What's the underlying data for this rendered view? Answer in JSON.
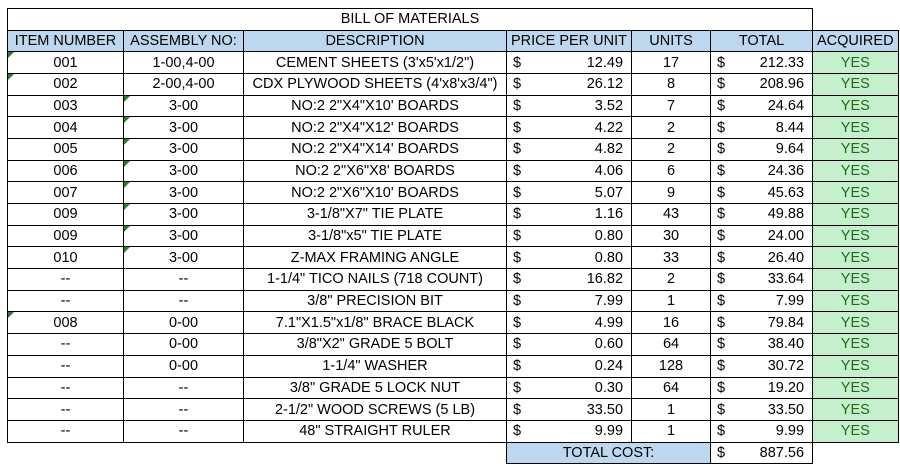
{
  "title": "BILL OF MATERIALS",
  "headers": [
    "ITEM NUMBER",
    "ASSEMBLY NO:",
    "DESCRIPTION",
    "PRICE PER UNIT",
    "UNITS",
    "TOTAL",
    "ACQUIRED"
  ],
  "currency_symbol": "$",
  "rows": [
    {
      "item": "001",
      "assembly": "1-00,4-00",
      "description": "CEMENT SHEETS (3'x5'x1/2\")",
      "price": "12.49",
      "units": "17",
      "total": "212.33",
      "acquired": "YES"
    },
    {
      "item": "002",
      "assembly": "2-00,4-00",
      "description": "CDX PLYWOOD SHEETS (4'x8'x3/4\")",
      "price": "26.12",
      "units": "8",
      "total": "208.96",
      "acquired": "YES"
    },
    {
      "item": "003",
      "assembly": "3-00",
      "description": "NO:2 2\"X4\"X10' BOARDS",
      "price": "3.52",
      "units": "7",
      "total": "24.64",
      "acquired": "YES"
    },
    {
      "item": "004",
      "assembly": "3-00",
      "description": "NO:2 2\"X4\"X12' BOARDS",
      "price": "4.22",
      "units": "2",
      "total": "8.44",
      "acquired": "YES"
    },
    {
      "item": "005",
      "assembly": "3-00",
      "description": "NO:2 2\"X4\"X14' BOARDS",
      "price": "4.82",
      "units": "2",
      "total": "9.64",
      "acquired": "YES"
    },
    {
      "item": "006",
      "assembly": "3-00",
      "description": "NO:2 2\"X6\"X8' BOARDS",
      "price": "4.06",
      "units": "6",
      "total": "24.36",
      "acquired": "YES"
    },
    {
      "item": "007",
      "assembly": "3-00",
      "description": "NO:2 2\"X6\"X10' BOARDS",
      "price": "5.07",
      "units": "9",
      "total": "45.63",
      "acquired": "YES"
    },
    {
      "item": "009",
      "assembly": "3-00",
      "description": "3-1/8\"X7\" TIE PLATE",
      "price": "1.16",
      "units": "43",
      "total": "49.88",
      "acquired": "YES"
    },
    {
      "item": "009",
      "assembly": "3-00",
      "description": "3-1/8\"x5\" TIE PLATE",
      "price": "0.80",
      "units": "30",
      "total": "24.00",
      "acquired": "YES"
    },
    {
      "item": "010",
      "assembly": "3-00",
      "description": "Z-MAX FRAMING ANGLE",
      "price": "0.80",
      "units": "33",
      "total": "26.40",
      "acquired": "YES"
    },
    {
      "item": "--",
      "assembly": "--",
      "description": "1-1/4\" TICO NAILS (718 COUNT)",
      "price": "16.82",
      "units": "2",
      "total": "33.64",
      "acquired": "YES"
    },
    {
      "item": "--",
      "assembly": "--",
      "description": "3/8\" PRECISION BIT",
      "price": "7.99",
      "units": "1",
      "total": "7.99",
      "acquired": "YES"
    },
    {
      "item": "008",
      "assembly": "0-00",
      "description": "7.1\"X1.5\"x1/8\" BRACE BLACK",
      "price": "4.99",
      "units": "16",
      "total": "79.84",
      "acquired": "YES"
    },
    {
      "item": "--",
      "assembly": "0-00",
      "description": "3/8\"X2\" GRADE 5 BOLT",
      "price": "0.60",
      "units": "64",
      "total": "38.40",
      "acquired": "YES"
    },
    {
      "item": "--",
      "assembly": "0-00",
      "description": "1-1/4\" WASHER",
      "price": "0.24",
      "units": "128",
      "total": "30.72",
      "acquired": "YES"
    },
    {
      "item": "--",
      "assembly": "--",
      "description": "3/8\" GRADE 5 LOCK NUT",
      "price": "0.30",
      "units": "64",
      "total": "19.20",
      "acquired": "YES"
    },
    {
      "item": "--",
      "assembly": "--",
      "description": "2-1/2\" WOOD SCREWS (5 LB)",
      "price": "33.50",
      "units": "1",
      "total": "33.50",
      "acquired": "YES"
    },
    {
      "item": "--",
      "assembly": "--",
      "description": "48\" STRAIGHT RULER",
      "price": "9.99",
      "units": "1",
      "total": "9.99",
      "acquired": "YES"
    }
  ],
  "total_cost_label": "TOTAL COST:",
  "total_cost_value": "887.56",
  "colors": {
    "header_fill": "#bdd7ee",
    "acquired_fill": "#c6efce",
    "acquired_text": "#1e6b1e",
    "comment_marker": "#2e7d32"
  }
}
